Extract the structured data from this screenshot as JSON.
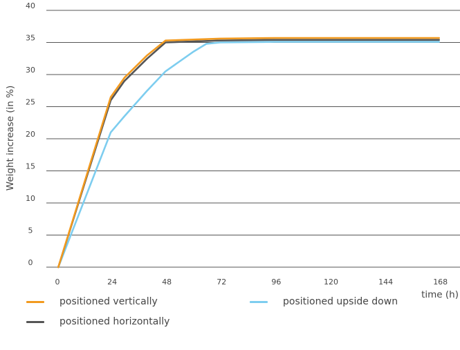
{
  "chart_data": {
    "type": "line",
    "xlabel": "time (h)",
    "ylabel": "Weight increase (in %)",
    "xlim": [
      0,
      168
    ],
    "ylim": [
      0,
      40
    ],
    "x_ticks": [
      "0",
      "24",
      "48",
      "72",
      "96",
      "120",
      "144",
      "168"
    ],
    "y_ticks": [
      "0",
      "5",
      "10",
      "15",
      "20",
      "25",
      "30",
      "35",
      "40"
    ],
    "grid": "horizontal",
    "legend_position": "bottom",
    "series": [
      {
        "name": "positioned vertically",
        "color": "#f29a1f",
        "x": [
          1,
          24,
          30,
          40,
          48,
          72,
          96,
          120,
          144,
          168
        ],
        "y": [
          0,
          26.5,
          29.5,
          33,
          35.3,
          35.6,
          35.7,
          35.7,
          35.7,
          35.7
        ]
      },
      {
        "name": "positioned horizontally",
        "color": "#555555",
        "x": [
          1,
          24,
          30,
          40,
          48,
          72,
          96,
          120,
          144,
          168
        ],
        "y": [
          0,
          26,
          29,
          32.5,
          35,
          35.3,
          35.4,
          35.4,
          35.4,
          35.4
        ]
      },
      {
        "name": "positioned upside down",
        "color": "#7dcdef",
        "x": [
          1,
          24,
          30,
          40,
          48,
          60,
          66,
          72,
          96,
          120,
          144,
          168
        ],
        "y": [
          0,
          21,
          23.5,
          27.5,
          30.5,
          33.5,
          34.8,
          35,
          35.1,
          35.1,
          35.1,
          35.1
        ]
      }
    ]
  }
}
